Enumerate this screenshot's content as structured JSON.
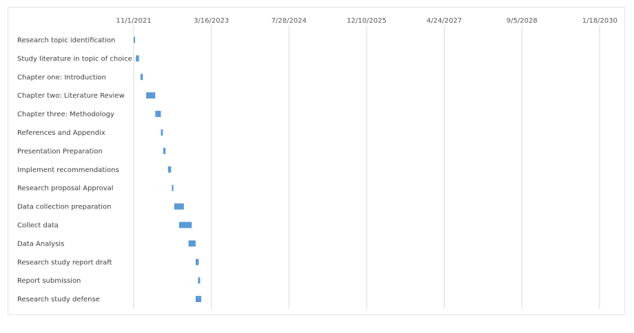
{
  "chart_data": {
    "type": "bar",
    "title": "",
    "xlabel": "",
    "ylabel": "",
    "x_axis": {
      "position": "top",
      "type": "date",
      "min": "11/1/2021",
      "max": "1/18/2030",
      "tick_labels": [
        "11/1/2021",
        "3/16/2023",
        "7/28/2024",
        "12/10/2025",
        "4/24/2027",
        "9/5/2028",
        "1/18/2030"
      ]
    },
    "grid": true,
    "legend": "none",
    "bar_color": "#5b9bd5",
    "categories": [
      "Research topic identification",
      "Study literature in topic of choice",
      "Chapter one: Introduction",
      "Chapter two: Literature Review",
      "Chapter three: Methodology",
      "References and Appendix",
      "Presentation Preparation",
      "Implement recommendations",
      "Research proposal  Approval",
      "Data collection preparation",
      "Collect data",
      "Data Analysis",
      "Research study report draft",
      "Report submission",
      "Research study defense"
    ],
    "series": [
      {
        "start": [
          "11/1/2021",
          "11/15/2021",
          "12/15/2021",
          "1/20/2022",
          "3/20/2022",
          "4/25/2022",
          "5/10/2022",
          "6/10/2022",
          "7/5/2022",
          "7/20/2022",
          "8/20/2022",
          "10/20/2022",
          "12/5/2022",
          "12/20/2022",
          "12/5/2022"
        ],
        "end": [
          "11/10/2021",
          "12/5/2021",
          "12/30/2021",
          "3/20/2022",
          "4/25/2022",
          "5/8/2022",
          "5/25/2022",
          "6/30/2022",
          "7/15/2022",
          "9/20/2022",
          "11/10/2022",
          "12/5/2022",
          "12/25/2022",
          "1/3/2023",
          "1/10/2023"
        ]
      }
    ]
  }
}
